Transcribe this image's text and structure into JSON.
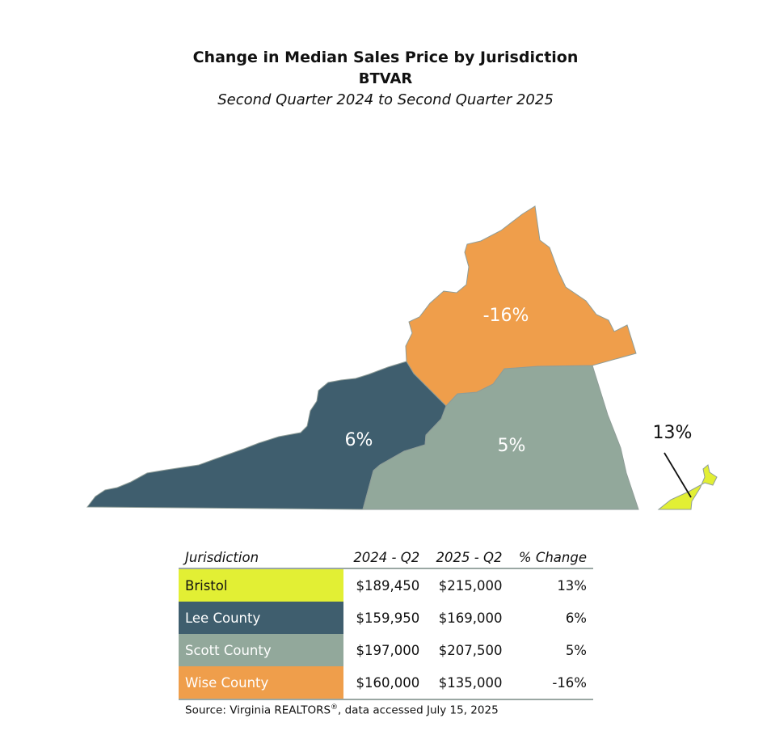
{
  "header": {
    "title": "Change in Median Sales Price by Jurisdiction",
    "subtitle": "BTVAR",
    "period": "Second Quarter 2024 to Second Quarter 2025"
  },
  "colors": {
    "bristol": "#e2ef34",
    "lee": "#3f5e6e",
    "scott": "#92a89b",
    "wise": "#ef9e4b"
  },
  "map": {
    "labels": {
      "wise": "-16%",
      "lee": "6%",
      "scott": "5%",
      "bristol": "13%"
    }
  },
  "table": {
    "headers": [
      "Jurisdiction",
      "2024 - Q2",
      "2025 - Q2",
      "% Change"
    ],
    "rows": [
      {
        "name": "Bristol",
        "q2_2024": "$189,450",
        "q2_2025": "$215,000",
        "change": "13%"
      },
      {
        "name": "Lee County",
        "q2_2024": "$159,950",
        "q2_2025": "$169,000",
        "change": "6%"
      },
      {
        "name": "Scott County",
        "q2_2024": "$197,000",
        "q2_2025": "$207,500",
        "change": "5%"
      },
      {
        "name": "Wise County",
        "q2_2024": "$160,000",
        "q2_2025": "$135,000",
        "change": "-16%"
      }
    ]
  },
  "source": {
    "text": "Source: Virginia REALTORS",
    "mark": "®",
    "suffix": ", data accessed July 15, 2025"
  }
}
